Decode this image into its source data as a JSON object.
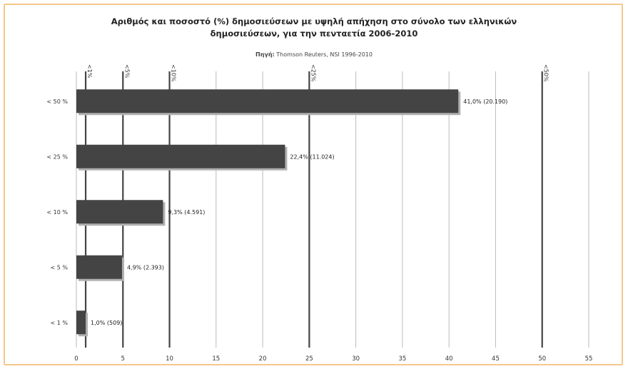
{
  "chart_data": {
    "type": "bar",
    "orientation": "horizontal",
    "title_line1": "Αριθμός και ποσοστό (%) δημοσιεύσεων με υψηλή απήχηση στο σύνολο των ελληνικών",
    "title_line2": "δημοσιεύσεων, για την πενταετία 2006-2010",
    "source_label": "Πηγή:",
    "source_text": "Thomson Reuters, NSI 1996-2010",
    "categories": [
      "< 50 %",
      "< 25 %",
      "< 10 %",
      "< 5 %",
      "< 1 %"
    ],
    "values": [
      41.0,
      22.4,
      9.3,
      4.9,
      1.0
    ],
    "data_labels": [
      "41,0% (20.190)",
      "22,4% (11.024)",
      "9,3% (4.591)",
      "4,9% (2.393)",
      "1,0% (509)"
    ],
    "xlim": [
      0,
      55
    ],
    "xticks": [
      0,
      5,
      10,
      15,
      20,
      25,
      30,
      35,
      40,
      45,
      50,
      55
    ],
    "threshold_lines": [
      {
        "value": 1,
        "label": "<1%"
      },
      {
        "value": 5,
        "label": "<5%"
      },
      {
        "value": 10,
        "label": "<10%"
      },
      {
        "value": 25,
        "label": "<25%"
      },
      {
        "value": 50,
        "label": "<50%"
      }
    ],
    "grid": true,
    "colors": {
      "bar": "#444444",
      "bar_shadow": "#b0b0b0",
      "grid": "#bbbbbb",
      "threshold": "#444444",
      "frame": "#f4c98c"
    }
  }
}
